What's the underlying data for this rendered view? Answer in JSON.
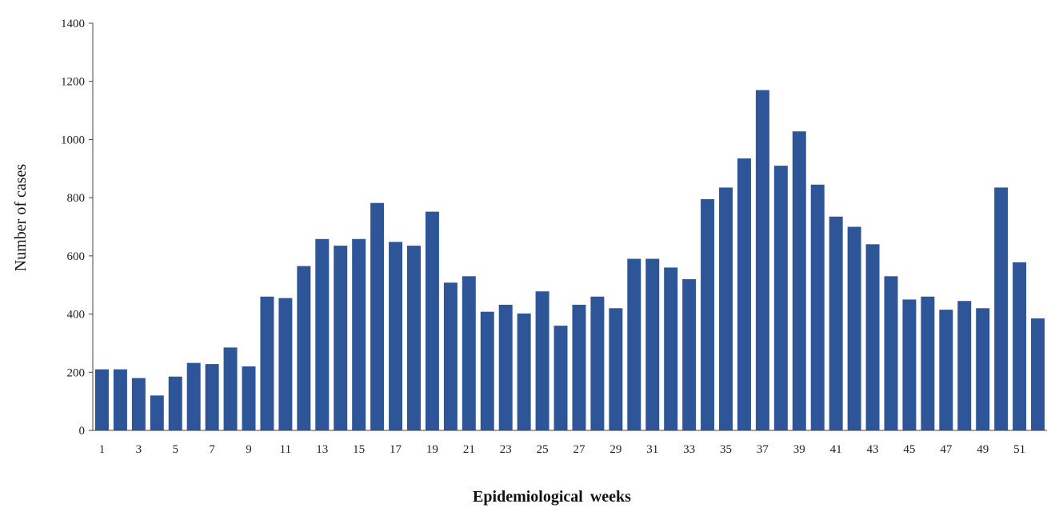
{
  "chart_data": {
    "type": "bar",
    "title": "",
    "xlabel": "Epidemiological  weeks",
    "ylabel": "Number of cases",
    "ylim": [
      0,
      1400
    ],
    "yticks": [
      0,
      200,
      400,
      600,
      800,
      1000,
      1200,
      1400
    ],
    "grid": false,
    "legend": "none",
    "bar_color": "#2e5597",
    "categories": [
      "1",
      "2",
      "3",
      "4",
      "5",
      "6",
      "7",
      "8",
      "9",
      "10",
      "11",
      "12",
      "13",
      "14",
      "15",
      "16",
      "17",
      "18",
      "19",
      "20",
      "21",
      "22",
      "23",
      "24",
      "25",
      "26",
      "27",
      "28",
      "29",
      "30",
      "31",
      "32",
      "33",
      "34",
      "35",
      "36",
      "37",
      "38",
      "39",
      "40",
      "41",
      "42",
      "43",
      "44",
      "45",
      "46",
      "47",
      "48",
      "49",
      "50",
      "51",
      "52"
    ],
    "tick_labels": [
      "1",
      "3",
      "5",
      "7",
      "9",
      "11",
      "13",
      "15",
      "17",
      "19",
      "21",
      "23",
      "25",
      "27",
      "29",
      "31",
      "33",
      "35",
      "37",
      "39",
      "41",
      "43",
      "45",
      "47",
      "49",
      "51"
    ],
    "values": [
      210,
      210,
      180,
      120,
      185,
      232,
      228,
      285,
      220,
      460,
      455,
      565,
      658,
      635,
      658,
      782,
      648,
      635,
      752,
      508,
      530,
      408,
      432,
      402,
      478,
      360,
      432,
      460,
      420,
      590,
      590,
      560,
      520,
      795,
      835,
      935,
      1170,
      910,
      1028,
      845,
      735,
      700,
      640,
      530,
      450,
      460,
      415,
      445,
      420,
      835,
      578,
      385
    ]
  }
}
